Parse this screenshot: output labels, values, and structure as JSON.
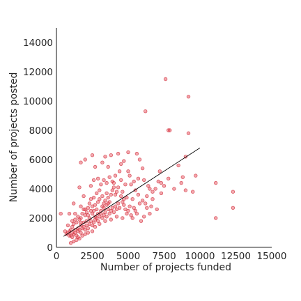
{
  "chart_data": {
    "type": "scatter",
    "title": "",
    "xlabel": "Number of projects funded",
    "ylabel": "Number of projects posted",
    "xlim": [
      0,
      15000
    ],
    "ylim": [
      0,
      15000
    ],
    "xticks": [
      0,
      2500,
      5000,
      7500,
      10000,
      12500,
      15000
    ],
    "yticks": [
      0,
      2000,
      4000,
      6000,
      8000,
      10000,
      12000,
      14000
    ],
    "grid": false,
    "point_color": "#e8505b",
    "line_color": "#000000",
    "fit_line": {
      "x": [
        500,
        10000
      ],
      "y": [
        750,
        6800
      ]
    },
    "series": [
      {
        "points": [
          [
            7600,
            11500
          ],
          [
            9200,
            10300
          ],
          [
            6200,
            9300
          ],
          [
            7800,
            8000
          ],
          [
            7900,
            8000
          ],
          [
            9200,
            7800
          ],
          [
            5600,
            6400
          ],
          [
            5000,
            6500
          ],
          [
            4300,
            6400
          ],
          [
            3400,
            6200
          ],
          [
            3800,
            6300
          ],
          [
            2500,
            6300
          ],
          [
            2000,
            6000
          ],
          [
            1700,
            5800
          ],
          [
            9000,
            6200
          ],
          [
            8500,
            5600
          ],
          [
            5800,
            6000
          ],
          [
            4700,
            5900
          ],
          [
            3200,
            5800
          ],
          [
            2700,
            5500
          ],
          [
            4500,
            5700
          ],
          [
            3600,
            5500
          ],
          [
            5000,
            5200
          ],
          [
            6000,
            5400
          ],
          [
            7200,
            5200
          ],
          [
            8800,
            4800
          ],
          [
            9700,
            4900
          ],
          [
            11100,
            4400
          ],
          [
            12300,
            3800
          ],
          [
            12300,
            2700
          ],
          [
            11100,
            2000
          ],
          [
            9500,
            3800
          ],
          [
            9000,
            3900
          ],
          [
            8700,
            4400
          ],
          [
            7800,
            4700
          ],
          [
            7500,
            4200
          ],
          [
            7100,
            4500
          ],
          [
            6900,
            4000
          ],
          [
            7300,
            3700
          ],
          [
            6700,
            3800
          ],
          [
            6400,
            4200
          ],
          [
            6100,
            4600
          ],
          [
            5700,
            4700
          ],
          [
            5400,
            4500
          ],
          [
            5200,
            4300
          ],
          [
            4800,
            4300
          ],
          [
            4500,
            4600
          ],
          [
            4100,
            4900
          ],
          [
            3900,
            4500
          ],
          [
            3700,
            4800
          ],
          [
            3500,
            4400
          ],
          [
            3300,
            4600
          ],
          [
            3100,
            4300
          ],
          [
            2900,
            4700
          ],
          [
            2600,
            4600
          ],
          [
            2400,
            4200
          ],
          [
            1600,
            4100
          ],
          [
            1900,
            3500
          ],
          [
            1200,
            3000
          ],
          [
            900,
            2300
          ],
          [
            300,
            2300
          ],
          [
            6300,
            3500
          ],
          [
            6000,
            3200
          ],
          [
            5800,
            3000
          ],
          [
            6600,
            2800
          ],
          [
            7000,
            2600
          ],
          [
            6300,
            2700
          ],
          [
            5500,
            2500
          ],
          [
            5100,
            2800
          ],
          [
            4700,
            2900
          ],
          [
            4500,
            3500
          ],
          [
            4200,
            3800
          ],
          [
            4000,
            4100
          ],
          [
            3900,
            3900
          ],
          [
            3800,
            3600
          ],
          [
            3600,
            3400
          ],
          [
            3500,
            3700
          ],
          [
            3400,
            3200
          ],
          [
            3300,
            3000
          ],
          [
            3200,
            2800
          ],
          [
            3000,
            3300
          ],
          [
            2900,
            3100
          ],
          [
            2800,
            2600
          ],
          [
            2700,
            2900
          ],
          [
            2600,
            3400
          ],
          [
            2500,
            2800
          ],
          [
            2400,
            2500
          ],
          [
            2300,
            3000
          ],
          [
            2200,
            2700
          ],
          [
            2100,
            2400
          ],
          [
            2000,
            2200
          ],
          [
            1900,
            2600
          ],
          [
            1800,
            2300
          ],
          [
            1700,
            2000
          ],
          [
            1600,
            1900
          ],
          [
            1500,
            2100
          ],
          [
            1400,
            1700
          ],
          [
            1300,
            1900
          ],
          [
            1200,
            1600
          ],
          [
            1100,
            1400
          ],
          [
            1000,
            1200
          ],
          [
            900,
            1100
          ],
          [
            800,
            1000
          ],
          [
            700,
            900
          ],
          [
            1000,
            800
          ],
          [
            1100,
            700
          ],
          [
            1200,
            900
          ],
          [
            1300,
            1000
          ],
          [
            1400,
            800
          ],
          [
            1500,
            1100
          ],
          [
            1600,
            1200
          ],
          [
            1700,
            1000
          ],
          [
            1800,
            1300
          ],
          [
            1900,
            1400
          ],
          [
            2000,
            1200
          ],
          [
            2100,
            1500
          ],
          [
            2200,
            1300
          ],
          [
            2300,
            1600
          ],
          [
            2400,
            1800
          ],
          [
            2500,
            1500
          ],
          [
            2600,
            1700
          ],
          [
            2700,
            1900
          ],
          [
            2800,
            2000
          ],
          [
            2900,
            1800
          ],
          [
            3000,
            2100
          ],
          [
            3100,
            2300
          ],
          [
            3200,
            2000
          ],
          [
            3300,
            2200
          ],
          [
            3400,
            2400
          ],
          [
            3500,
            2100
          ],
          [
            3600,
            2600
          ],
          [
            3700,
            2300
          ],
          [
            3800,
            2500
          ],
          [
            3900,
            2700
          ],
          [
            4000,
            2400
          ],
          [
            4100,
            2800
          ],
          [
            4200,
            2600
          ],
          [
            4300,
            3000
          ],
          [
            4400,
            2700
          ],
          [
            4600,
            3100
          ],
          [
            4800,
            2600
          ],
          [
            4900,
            2300
          ],
          [
            5000,
            2500
          ],
          [
            5200,
            2200
          ],
          [
            5300,
            2000
          ],
          [
            5400,
            2700
          ],
          [
            4900,
            3400
          ],
          [
            4600,
            3800
          ],
          [
            4300,
            4100
          ],
          [
            4100,
            3600
          ],
          [
            3700,
            3100
          ],
          [
            3500,
            2900
          ],
          [
            3300,
            2700
          ],
          [
            3100,
            2500
          ],
          [
            2900,
            2300
          ],
          [
            2700,
            2100
          ],
          [
            2500,
            2300
          ],
          [
            2300,
            2000
          ],
          [
            2100,
            1800
          ],
          [
            1900,
            1700
          ],
          [
            1700,
            1500
          ],
          [
            1500,
            1300
          ],
          [
            1300,
            1200
          ],
          [
            1100,
            1000
          ],
          [
            900,
            800
          ],
          [
            1400,
            500
          ],
          [
            1600,
            600
          ],
          [
            1200,
            400
          ],
          [
            1000,
            300
          ],
          [
            2000,
            900
          ],
          [
            2200,
            1000
          ],
          [
            2500,
            1100
          ],
          [
            1800,
            800
          ],
          [
            1500,
            700
          ],
          [
            2700,
            1400
          ],
          [
            3000,
            1600
          ],
          [
            3400,
            1800
          ],
          [
            3800,
            1900
          ],
          [
            4200,
            2100
          ],
          [
            4600,
            2000
          ],
          [
            5600,
            2300
          ],
          [
            6100,
            2100
          ],
          [
            6500,
            2300
          ],
          [
            5900,
            1800
          ],
          [
            5700,
            3600
          ],
          [
            5500,
            3900
          ],
          [
            6700,
            3300
          ],
          [
            7300,
            4400
          ],
          [
            8200,
            4000
          ],
          [
            6500,
            4000
          ],
          [
            2000,
            2600
          ],
          [
            2400,
            3300
          ],
          [
            1700,
            2800
          ],
          [
            2800,
            3700
          ],
          [
            3200,
            3500
          ],
          [
            4400,
            5200
          ],
          [
            5100,
            4900
          ],
          [
            4000,
            4400
          ],
          [
            3000,
            3900
          ],
          [
            1300,
            2300
          ],
          [
            1100,
            1800
          ],
          [
            800,
            1500
          ],
          [
            600,
            1100
          ],
          [
            1700,
            1700
          ],
          [
            2200,
            2200
          ],
          [
            2600,
            2500
          ],
          [
            3600,
            3000
          ],
          [
            4700,
            3300
          ],
          [
            5300,
            3300
          ],
          [
            6200,
            3000
          ]
        ]
      }
    ]
  }
}
